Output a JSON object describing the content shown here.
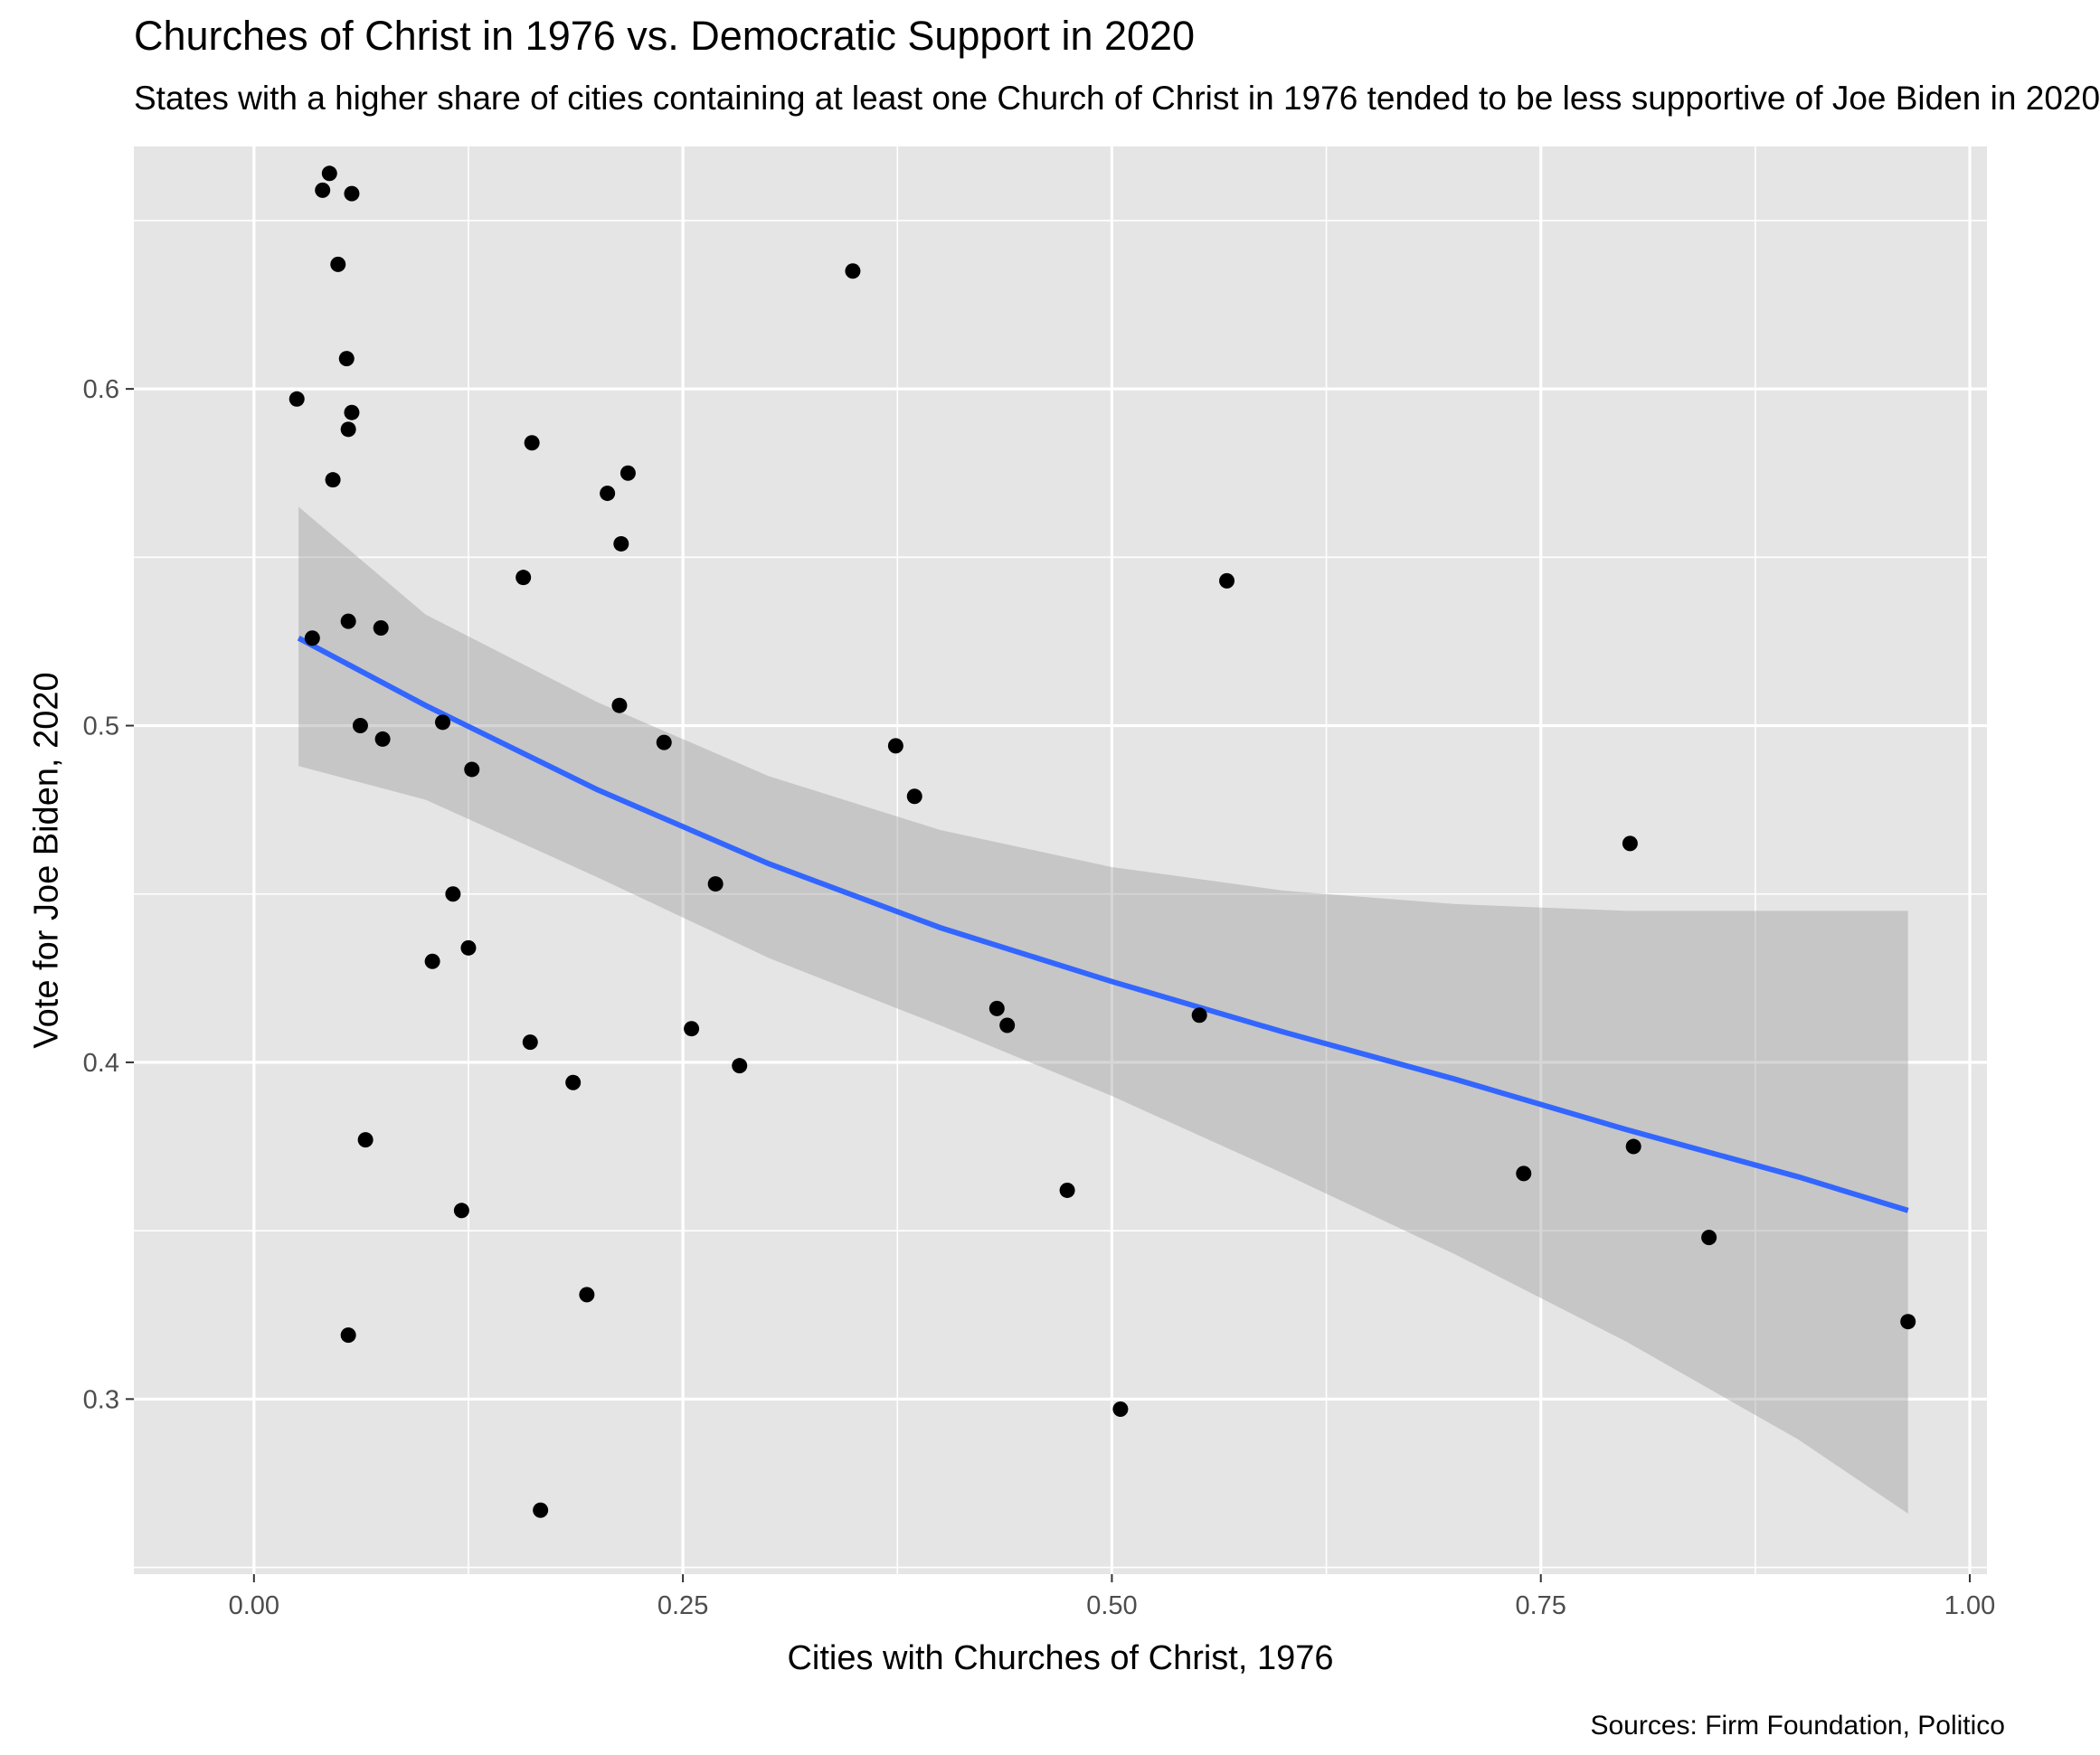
{
  "chart_data": {
    "type": "scatter",
    "title": "Churches of Christ in 1976 vs. Democratic Support in 2020",
    "subtitle": "States with a higher share of cities containing at least one Church of Christ in 1976 tended to be less supportive of Joe Biden in 2020",
    "xlabel": "Cities with Churches of Christ, 1976",
    "ylabel": "Vote for Joe Biden, 2020",
    "caption": "Sources: Firm Foundation, Politico",
    "xlim": [
      -0.07,
      1.01
    ],
    "ylim": [
      0.248,
      0.672
    ],
    "x_ticks": [
      0.0,
      0.25,
      0.5,
      0.75,
      1.0
    ],
    "x_tick_labels": [
      "0.00",
      "0.25",
      "0.50",
      "0.75",
      "1.00"
    ],
    "y_ticks": [
      0.3,
      0.4,
      0.5,
      0.6
    ],
    "y_tick_labels": [
      "0.3",
      "0.4",
      "0.5",
      "0.6"
    ],
    "grid": true,
    "point_color": "#000000",
    "line_color": "#3366ff",
    "band_color": "#999999",
    "panel_background": "#e5e5e5",
    "points": [
      {
        "x": 0.025,
        "y": 0.597
      },
      {
        "x": 0.034,
        "y": 0.526
      },
      {
        "x": 0.04,
        "y": 0.659
      },
      {
        "x": 0.044,
        "y": 0.664
      },
      {
        "x": 0.046,
        "y": 0.573
      },
      {
        "x": 0.049,
        "y": 0.637
      },
      {
        "x": 0.054,
        "y": 0.609
      },
      {
        "x": 0.055,
        "y": 0.588
      },
      {
        "x": 0.055,
        "y": 0.531
      },
      {
        "x": 0.055,
        "y": 0.319
      },
      {
        "x": 0.057,
        "y": 0.658
      },
      {
        "x": 0.057,
        "y": 0.593
      },
      {
        "x": 0.062,
        "y": 0.5
      },
      {
        "x": 0.065,
        "y": 0.377
      },
      {
        "x": 0.074,
        "y": 0.529
      },
      {
        "x": 0.075,
        "y": 0.496
      },
      {
        "x": 0.104,
        "y": 0.43
      },
      {
        "x": 0.11,
        "y": 0.501
      },
      {
        "x": 0.116,
        "y": 0.45
      },
      {
        "x": 0.121,
        "y": 0.356
      },
      {
        "x": 0.125,
        "y": 0.434
      },
      {
        "x": 0.127,
        "y": 0.487
      },
      {
        "x": 0.157,
        "y": 0.544
      },
      {
        "x": 0.161,
        "y": 0.406
      },
      {
        "x": 0.162,
        "y": 0.584
      },
      {
        "x": 0.167,
        "y": 0.267
      },
      {
        "x": 0.186,
        "y": 0.394
      },
      {
        "x": 0.194,
        "y": 0.331
      },
      {
        "x": 0.206,
        "y": 0.569
      },
      {
        "x": 0.213,
        "y": 0.506
      },
      {
        "x": 0.214,
        "y": 0.554
      },
      {
        "x": 0.218,
        "y": 0.575
      },
      {
        "x": 0.239,
        "y": 0.495
      },
      {
        "x": 0.255,
        "y": 0.41
      },
      {
        "x": 0.269,
        "y": 0.453
      },
      {
        "x": 0.283,
        "y": 0.399
      },
      {
        "x": 0.349,
        "y": 0.635
      },
      {
        "x": 0.374,
        "y": 0.494
      },
      {
        "x": 0.385,
        "y": 0.479
      },
      {
        "x": 0.433,
        "y": 0.416
      },
      {
        "x": 0.439,
        "y": 0.411
      },
      {
        "x": 0.474,
        "y": 0.362
      },
      {
        "x": 0.505,
        "y": 0.297
      },
      {
        "x": 0.551,
        "y": 0.414
      },
      {
        "x": 0.567,
        "y": 0.543
      },
      {
        "x": 0.74,
        "y": 0.367
      },
      {
        "x": 0.802,
        "y": 0.465
      },
      {
        "x": 0.804,
        "y": 0.375
      },
      {
        "x": 0.848,
        "y": 0.348
      },
      {
        "x": 0.964,
        "y": 0.323
      }
    ],
    "smooth_fit": {
      "x": [
        0.026,
        0.1,
        0.2,
        0.3,
        0.4,
        0.5,
        0.6,
        0.7,
        0.8,
        0.9,
        0.964
      ],
      "y": [
        0.526,
        0.506,
        0.481,
        0.459,
        0.44,
        0.424,
        0.409,
        0.395,
        0.38,
        0.366,
        0.356
      ],
      "upper": [
        0.565,
        0.533,
        0.507,
        0.485,
        0.469,
        0.458,
        0.451,
        0.447,
        0.445,
        0.445,
        0.445
      ],
      "lower": [
        0.488,
        0.478,
        0.455,
        0.431,
        0.411,
        0.39,
        0.367,
        0.343,
        0.317,
        0.288,
        0.266
      ]
    }
  }
}
